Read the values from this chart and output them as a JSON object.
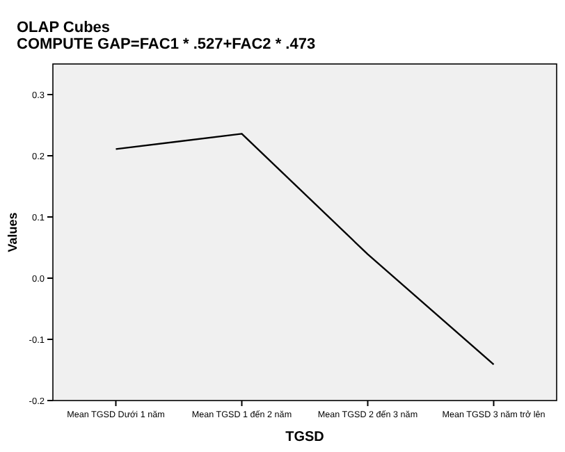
{
  "chart_data": {
    "type": "line",
    "title": "OLAP Cubes",
    "subtitle": "COMPUTE GAP=FAC1 * .527+FAC2 * .473",
    "xlabel": "TGSD",
    "ylabel": "Values",
    "categories": [
      "Mean TGSD Dưới 1 năm",
      "Mean TGSD 1 đến 2 năm",
      "Mean TGSD 2 đến 3 năm",
      "Mean TGSD 3 năm trở lên"
    ],
    "series": [
      {
        "color": "#000000",
        "values": [
          0.211,
          0.236,
          0.039,
          -0.141
        ]
      }
    ],
    "ylim": [
      -0.2,
      0.35
    ],
    "yticks": [
      {
        "value": -0.2,
        "label": "-0.2"
      },
      {
        "value": -0.1,
        "label": "-0.1"
      },
      {
        "value": 0,
        "label": "0.0"
      },
      {
        "value": 0.1,
        "label": "0.1"
      },
      {
        "value": 0.2,
        "label": "0.2"
      },
      {
        "value": 0.3,
        "label": "0.3"
      }
    ],
    "grid": false,
    "marker": "none",
    "line_style": "solid"
  }
}
